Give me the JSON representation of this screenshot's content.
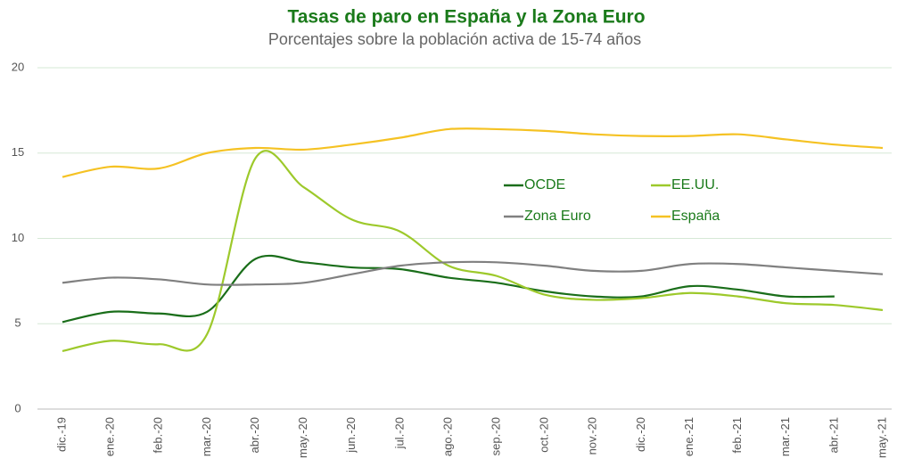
{
  "chart_data": {
    "type": "line",
    "title": "Tasas de paro en España y la Zona Euro",
    "subtitle": "Porcentajes sobre la población activa de 15-74 años",
    "categories": [
      "dic.-19",
      "ene.-20",
      "feb.-20",
      "mar.-20",
      "abr.-20",
      "may.-20",
      "jun.-20",
      "jul.-20",
      "ago.-20",
      "sep.-20",
      "oct.-20",
      "nov.-20",
      "dic.-20",
      "ene.-21",
      "feb.-21",
      "mar.-21",
      "abr.-21",
      "may.-21"
    ],
    "series": [
      {
        "name": "OCDE",
        "color": "#1a6e1a",
        "values": [
          5.1,
          5.7,
          5.6,
          5.7,
          8.8,
          8.6,
          8.3,
          8.2,
          7.7,
          7.4,
          6.9,
          6.6,
          6.6,
          7.2,
          7.0,
          6.6,
          6.6,
          null
        ]
      },
      {
        "name": "EE.UU.",
        "color": "#9dc92b",
        "values": [
          3.4,
          4.0,
          3.8,
          4.4,
          14.7,
          13.0,
          11.1,
          10.4,
          8.4,
          7.8,
          6.7,
          6.4,
          6.5,
          6.8,
          6.6,
          6.2,
          6.1,
          5.8
        ]
      },
      {
        "name": "Zona Euro",
        "color": "#808080",
        "values": [
          7.4,
          7.7,
          7.6,
          7.3,
          7.3,
          7.4,
          7.9,
          8.4,
          8.6,
          8.6,
          8.4,
          8.1,
          8.1,
          8.5,
          8.5,
          8.3,
          8.1,
          7.9
        ]
      },
      {
        "name": "España",
        "color": "#f5c223",
        "values": [
          13.6,
          14.2,
          14.1,
          15.0,
          15.3,
          15.2,
          15.5,
          15.9,
          16.4,
          16.4,
          16.3,
          16.1,
          16.0,
          16.0,
          16.1,
          15.8,
          15.5,
          15.3
        ]
      }
    ],
    "ylim": [
      0,
      20
    ],
    "yticks": [
      0,
      5,
      10,
      15,
      20
    ],
    "grid": true,
    "legend": "inside"
  }
}
